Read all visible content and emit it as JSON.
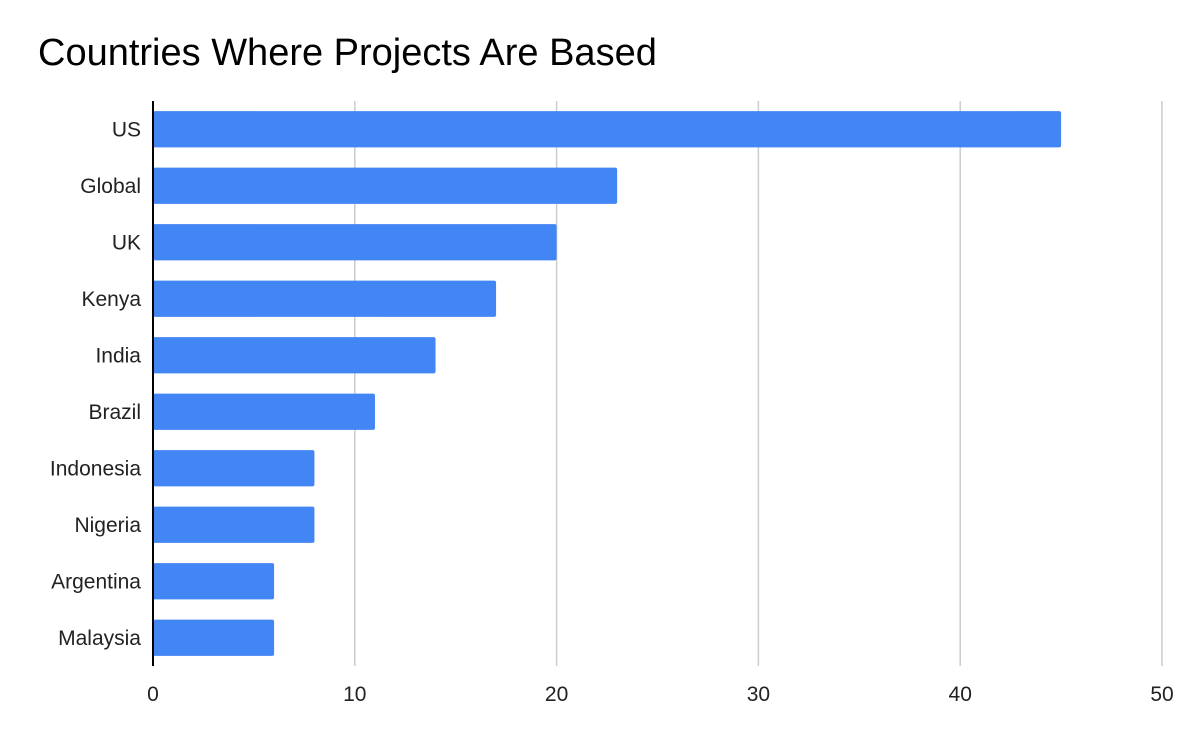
{
  "colors": {
    "bar": "#4285f4",
    "grid": "#cccccc",
    "axis": "#000000"
  },
  "chart_data": {
    "type": "bar",
    "orientation": "horizontal",
    "title": "Countries Where Projects Are Based",
    "xlabel": "",
    "ylabel": "",
    "categories": [
      "US",
      "Global",
      "UK",
      "Kenya",
      "India",
      "Brazil",
      "Indonesia",
      "Nigeria",
      "Argentina",
      "Malaysia"
    ],
    "values": [
      45,
      23,
      20,
      17,
      14,
      11,
      8,
      8,
      6,
      6
    ],
    "xlim": [
      0,
      50
    ],
    "xticks": [
      0,
      10,
      20,
      30,
      40,
      50
    ],
    "grid": true,
    "legend": "none"
  }
}
